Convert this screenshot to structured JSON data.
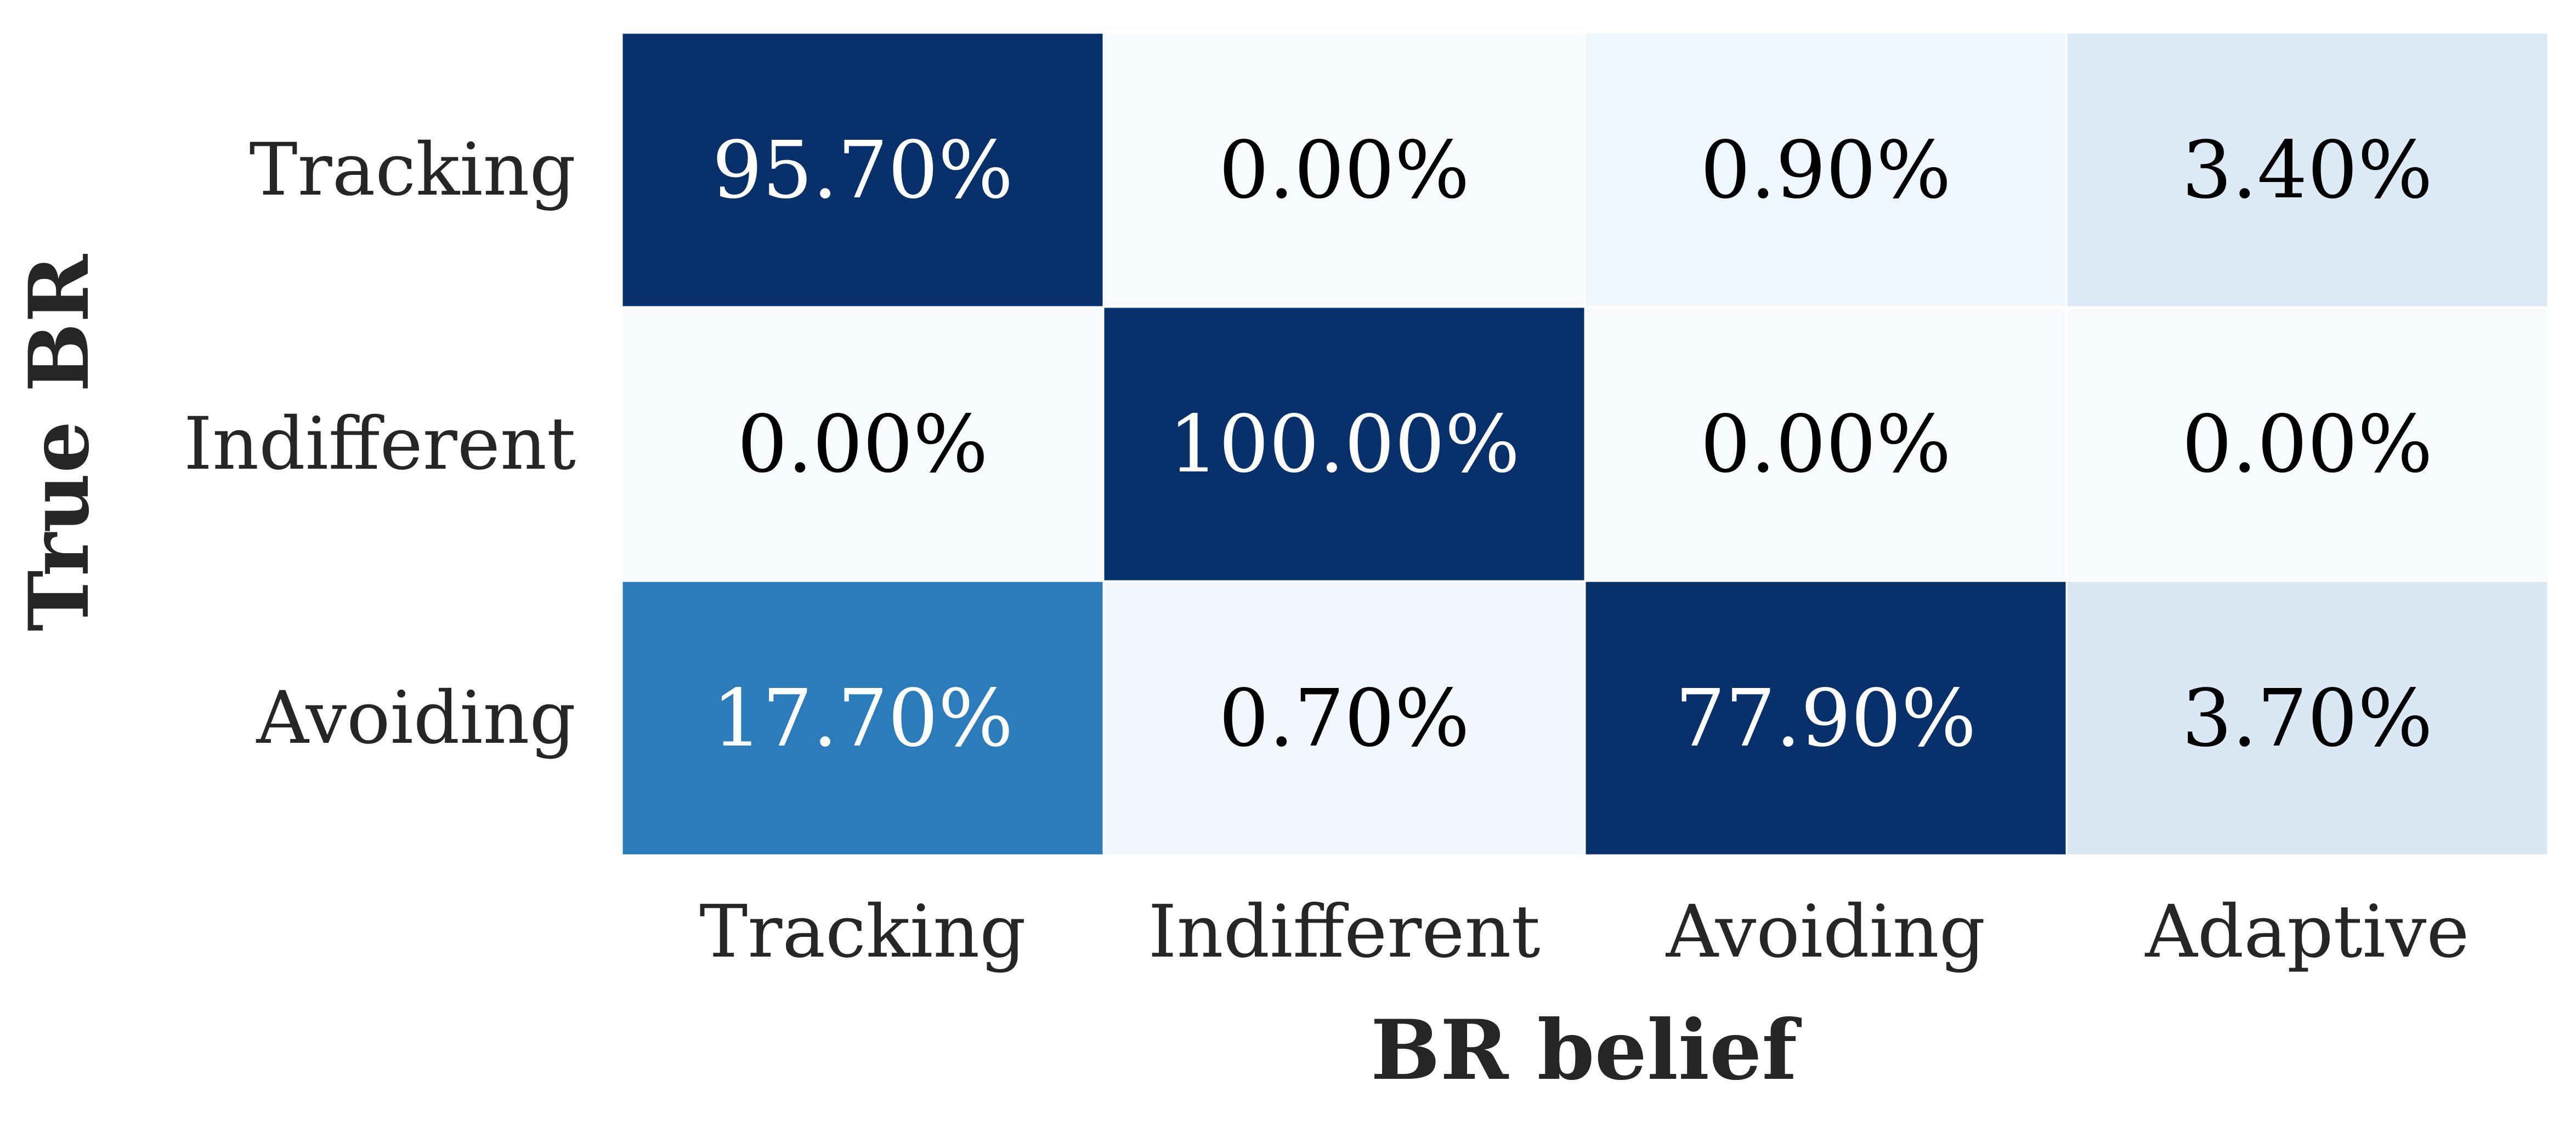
{
  "chart_data": {
    "type": "heatmap",
    "xlabel": "BR belief",
    "ylabel": "True BR",
    "x_categories": [
      "Tracking",
      "Indifferent",
      "Avoiding",
      "Adaptive"
    ],
    "y_categories": [
      "Tracking",
      "Indifferent",
      "Avoiding"
    ],
    "values": [
      [
        95.7,
        0.0,
        0.9,
        3.4
      ],
      [
        0.0,
        100.0,
        0.0,
        0.0
      ],
      [
        17.7,
        0.7,
        77.9,
        3.7
      ]
    ],
    "cell_labels": [
      [
        "95.70%",
        "0.00%",
        "0.90%",
        "3.40%"
      ],
      [
        "0.00%",
        "100.00%",
        "0.00%",
        "0.00%"
      ],
      [
        "17.70%",
        "0.70%",
        "77.90%",
        "3.70%"
      ]
    ],
    "colormap": "Blues",
    "vmin": 0,
    "vmax": 25,
    "colorbar": false,
    "grid": false
  }
}
